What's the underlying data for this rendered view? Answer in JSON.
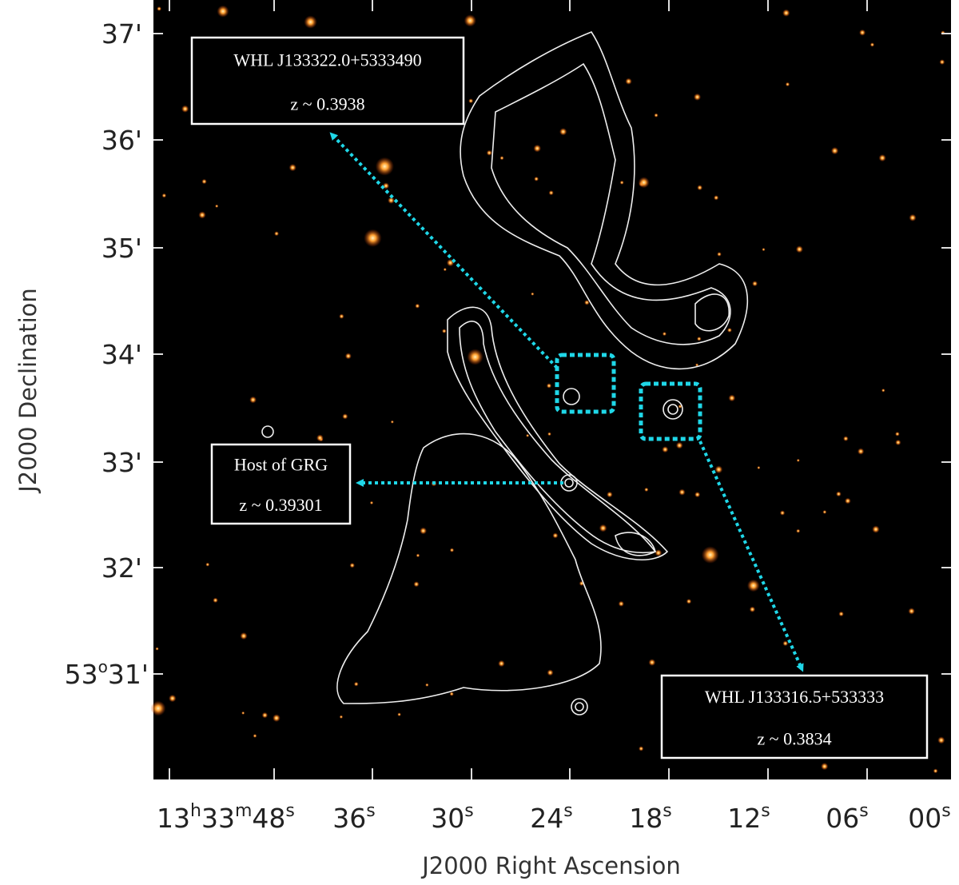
{
  "plot": {
    "y_axis": {
      "label": "J2000 Declination",
      "ticks": [
        [
          "37'"
        ],
        [
          "36'"
        ],
        [
          "35'"
        ],
        [
          "34'"
        ],
        [
          "33'"
        ],
        [
          "32'"
        ],
        [
          "53",
          "o",
          "31'"
        ]
      ]
    },
    "x_axis": {
      "label": "J2000 Right Ascension",
      "ticks": [
        [
          "13",
          "h",
          "33",
          "m",
          "48",
          "s"
        ],
        [
          "36",
          "s"
        ],
        [
          "30",
          "s"
        ],
        [
          "24",
          "s"
        ],
        [
          "18",
          "s"
        ],
        [
          "12",
          "s"
        ],
        [
          "06",
          "s"
        ],
        [
          "00",
          "s"
        ]
      ]
    }
  },
  "annotations": [
    {
      "name": "WHL J133322.0+5333490",
      "redshift": "z ~ 0.3938"
    },
    {
      "name": "Host of GRG",
      "redshift": "z ~ 0.39301"
    },
    {
      "name": "WHL J133316.5+533333",
      "redshift": "z ~ 0.3834"
    }
  ]
}
